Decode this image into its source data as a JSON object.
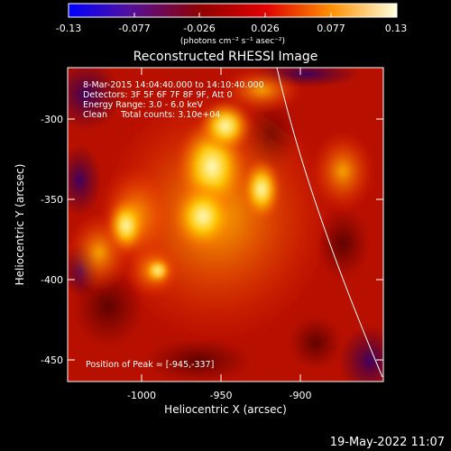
{
  "colorbar": {
    "tick_labels": [
      "-0.13",
      "-0.077",
      "-0.026",
      "0.026",
      "0.077",
      "0.13"
    ],
    "units_label": "(photons cm⁻² s⁻¹ asec⁻²)"
  },
  "plot": {
    "title": "Reconstructed RHESSI Image",
    "info_lines": [
      "8-Mar-2015 14:04:40.000 to 14:10:40.000",
      "Detectors: 3F 5F 6F 7F 8F 9F, Att 0",
      "Energy Range: 3.0 - 6.0 keV",
      "Clean     Total counts: 3.10e+04"
    ],
    "peak_text": "Position of Peak = [-945,-337]",
    "x_axis_label": "Heliocentric X (arcsec)",
    "y_axis_label": "Heliocentric Y (arcsec)",
    "x_tick_labels": [
      "-1000",
      "-950",
      "-900"
    ],
    "y_tick_labels": [
      "-300",
      "-350",
      "-400",
      "-450"
    ]
  },
  "footer": {
    "timestamp": "19-May-2022 11:07"
  }
}
